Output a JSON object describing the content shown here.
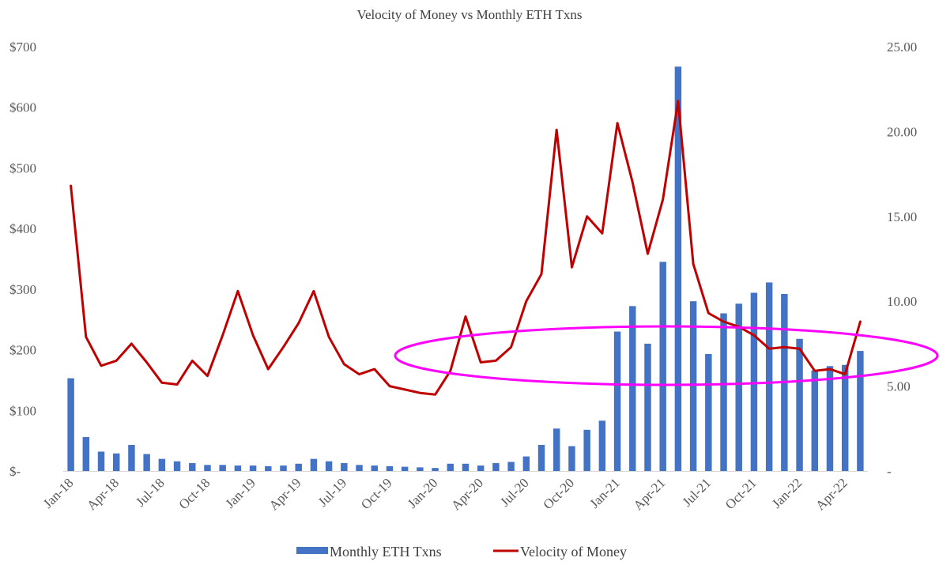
{
  "chart_data": {
    "type": "bar+line",
    "title": "Velocity of Money vs Monthly ETH Txns",
    "x": [
      "Jan-18",
      "Feb-18",
      "Mar-18",
      "Apr-18",
      "May-18",
      "Jun-18",
      "Jul-18",
      "Aug-18",
      "Sep-18",
      "Oct-18",
      "Nov-18",
      "Dec-18",
      "Jan-19",
      "Feb-19",
      "Mar-19",
      "Apr-19",
      "May-19",
      "Jun-19",
      "Jul-19",
      "Aug-19",
      "Sep-19",
      "Oct-19",
      "Nov-19",
      "Dec-19",
      "Jan-20",
      "Feb-20",
      "Mar-20",
      "Apr-20",
      "May-20",
      "Jun-20",
      "Jul-20",
      "Aug-20",
      "Sep-20",
      "Oct-20",
      "Nov-20",
      "Dec-20",
      "Jan-21",
      "Feb-21",
      "Mar-21",
      "Apr-21",
      "May-21",
      "Jun-21",
      "Jul-21",
      "Aug-21",
      "Sep-21",
      "Oct-21",
      "Nov-21",
      "Dec-21",
      "Jan-22",
      "Feb-22",
      "Mar-22",
      "Apr-22",
      "May-22"
    ],
    "x_tick_labels": [
      "Jan-18",
      "Apr-18",
      "Jul-18",
      "Oct-18",
      "Jan-19",
      "Apr-19",
      "Jul-19",
      "Oct-19",
      "Jan-20",
      "Apr-20",
      "Jul-20",
      "Oct-20",
      "Jan-21",
      "Apr-21",
      "Jul-21",
      "Oct-21",
      "Jan-22",
      "Apr-22"
    ],
    "series": [
      {
        "name": "Monthly ETH Txns",
        "type": "bar",
        "axis": "left",
        "color": "#4472C4",
        "values": [
          153,
          56,
          32,
          29,
          43,
          28,
          20,
          16,
          13,
          10,
          10,
          9,
          9,
          8,
          9,
          12,
          20,
          16,
          13,
          10,
          9,
          8,
          7,
          6,
          5,
          12,
          12,
          9,
          13,
          15,
          24,
          43,
          70,
          41,
          68,
          83,
          230,
          272,
          210,
          345,
          667,
          280,
          193,
          260,
          276,
          294,
          311,
          292,
          218,
          166,
          173,
          175,
          198
        ]
      },
      {
        "name": "Velocity of Money",
        "type": "line",
        "axis": "right",
        "color": "#C00000",
        "values": [
          16.8,
          7.9,
          6.2,
          6.5,
          7.5,
          6.4,
          5.2,
          5.1,
          6.5,
          5.6,
          8.0,
          10.6,
          8.0,
          6.0,
          7.3,
          8.7,
          10.6,
          7.9,
          6.3,
          5.7,
          6.0,
          5.0,
          4.8,
          4.6,
          4.5,
          5.9,
          9.1,
          6.4,
          6.5,
          7.3,
          10.0,
          11.6,
          20.1,
          12.0,
          15.0,
          14.0,
          20.5,
          17.0,
          12.8,
          16.0,
          21.8,
          12.2,
          9.3,
          8.8,
          8.5,
          8.0,
          7.2,
          7.3,
          7.2,
          5.9,
          6.0,
          5.7,
          8.8
        ]
      }
    ],
    "y_left": {
      "min": 0,
      "max": 700,
      "step": 100,
      "tick_labels": [
        "$-",
        "$100",
        "$200",
        "$300",
        "$400",
        "$500",
        "$600",
        "$700"
      ]
    },
    "y_right": {
      "min": 0,
      "max": 25,
      "step": 5,
      "tick_labels": [
        "-",
        "5.00",
        "10.00",
        "15.00",
        "20.00",
        "25.00"
      ]
    },
    "annotation": {
      "shape": "ellipse",
      "color": "#FF00FF",
      "description": ""
    },
    "legend_position": "bottom",
    "grid": false
  }
}
